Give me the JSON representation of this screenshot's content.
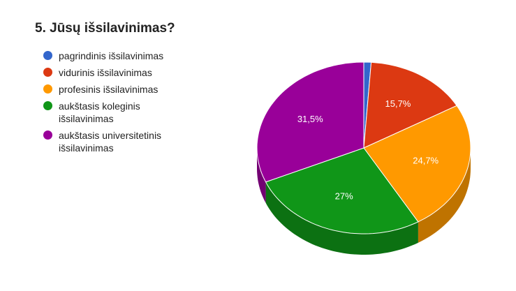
{
  "chart_data": {
    "type": "pie3d",
    "title": "5. Jūsų išsilavinimas?",
    "categories": [
      "pagrindinis išsilavinimas",
      "vidurinis išsilavinimas",
      "profesinis išsilavinimas",
      "aukštasis koleginis išsilavinimas",
      "aukštasis universitetinis išsilavinimas"
    ],
    "values": [
      1.1,
      15.7,
      24.7,
      27,
      31.5
    ],
    "value_labels": [
      null,
      "15,7%",
      "24,7%",
      "27%",
      "31,5%"
    ],
    "colors": [
      "#3366cc",
      "#dc3912",
      "#ff9900",
      "#109618",
      "#990099"
    ],
    "legend": "left"
  }
}
